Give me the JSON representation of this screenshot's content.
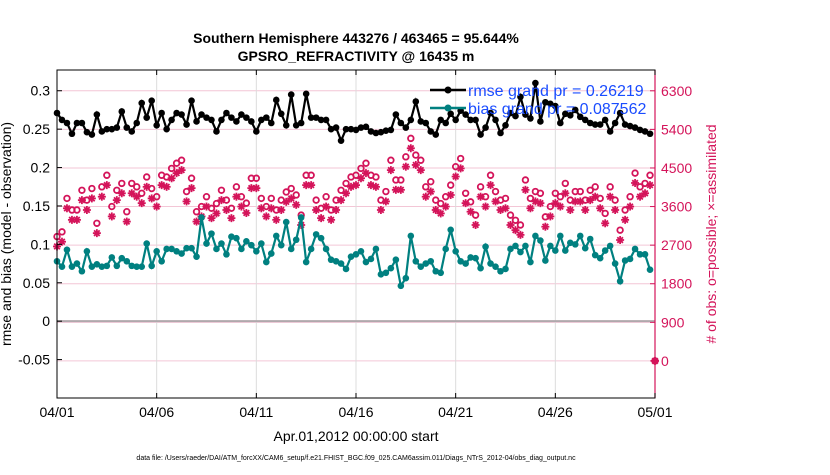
{
  "chart_data": {
    "type": "line",
    "title": [
      "Southern Hemisphere 443276 / 463465 = 95.644%",
      "GPSRO_REFRACTIVITY @ 16435 m"
    ],
    "xlabel": "Apr.01,2012 00:00:00 start",
    "ylabel": "rmse and bias (model - observation)",
    "y2label": "# of obs: o=possible; ×=assimilated",
    "footer": "data file: /Users/raeder/DAI/ATM_forcXX/CAM6_setup/f.e21.FHIST_BGC.f09_025.CAM6assim.011/Diags_NTrS_2012-04/obs_diag_output.nc",
    "x_unit": "days since Apr.01,2012 00:00",
    "x_step_days": 0.25,
    "xlim": [
      0,
      30
    ],
    "ylim": [
      -0.1,
      0.327
    ],
    "y2lim": [
      -865,
      6785
    ],
    "x_ticks": [
      {
        "day": 0,
        "label": "04/01"
      },
      {
        "day": 5,
        "label": "04/06"
      },
      {
        "day": 10,
        "label": "04/11"
      },
      {
        "day": 15,
        "label": "04/16"
      },
      {
        "day": 20,
        "label": "04/21"
      },
      {
        "day": 25,
        "label": "04/26"
      },
      {
        "day": 30,
        "label": "05/01"
      }
    ],
    "y_ticks": [
      {
        "v": -0.05,
        "label": "-0.05"
      },
      {
        "v": 0,
        "label": "0"
      },
      {
        "v": 0.05,
        "label": "0.05"
      },
      {
        "v": 0.1,
        "label": "0.1"
      },
      {
        "v": 0.15,
        "label": "0.15"
      },
      {
        "v": 0.2,
        "label": "0.2"
      },
      {
        "v": 0.25,
        "label": "0.25"
      },
      {
        "v": 0.3,
        "label": "0.3"
      }
    ],
    "y2_ticks": [
      {
        "v": 0,
        "label": "0"
      },
      {
        "v": 900,
        "label": "900"
      },
      {
        "v": 1800,
        "label": "1800"
      },
      {
        "v": 2700,
        "label": "2700"
      },
      {
        "v": 3600,
        "label": "3600"
      },
      {
        "v": 4500,
        "label": "4500"
      },
      {
        "v": 5400,
        "label": "5400"
      },
      {
        "v": 6300,
        "label": "6300"
      }
    ],
    "legend": {
      "placement": "top-right",
      "entries": [
        "rmse grand pr = 0.26219",
        "bias grand pr = 0.087562"
      ]
    },
    "colors": {
      "rmse": "#000000",
      "bias": "#008080",
      "obs": "#d4145a",
      "legend_text": "#1a4cff",
      "grid": "#f3c6d6",
      "zero": "#b0a8ac"
    },
    "series": [
      {
        "name": "rmse",
        "axis": "left",
        "values": [
          0.271,
          0.262,
          0.258,
          0.244,
          0.258,
          0.258,
          0.246,
          0.243,
          0.269,
          0.247,
          0.25,
          0.25,
          0.252,
          0.273,
          0.252,
          0.247,
          0.258,
          0.284,
          0.265,
          0.287,
          0.255,
          0.271,
          0.25,
          0.262,
          0.271,
          0.269,
          0.256,
          0.287,
          0.26,
          0.269,
          0.265,
          0.262,
          0.247,
          0.262,
          0.271,
          0.265,
          0.26,
          0.269,
          0.265,
          0.26,
          0.247,
          0.262,
          0.265,
          0.258,
          0.288,
          0.27,
          0.255,
          0.295,
          0.255,
          0.258,
          0.296,
          0.265,
          0.265,
          0.262,
          0.262,
          0.25,
          0.252,
          0.235,
          0.25,
          0.25,
          0.249,
          0.252,
          0.253,
          0.247,
          0.245,
          0.246,
          0.248,
          0.249,
          0.269,
          0.258,
          0.252,
          0.262,
          0.286,
          0.26,
          0.258,
          0.247,
          0.243,
          0.262,
          0.258,
          0.27,
          0.262,
          0.274,
          0.269,
          0.262,
          0.262,
          0.243,
          0.252,
          0.271,
          0.262,
          0.245,
          0.255,
          0.271,
          0.267,
          0.292,
          0.269,
          0.264,
          0.31,
          0.26,
          0.285,
          0.283,
          0.28,
          0.258,
          0.27,
          0.268,
          0.275,
          0.266,
          0.262,
          0.258,
          0.256,
          0.256,
          0.262,
          0.247,
          0.258,
          0.271,
          0.256,
          0.254,
          0.252,
          0.249,
          0.247,
          0.244,
          null
        ]
      },
      {
        "name": "bias",
        "axis": "left",
        "values": [
          0.078,
          0.071,
          0.093,
          0.071,
          0.075,
          0.065,
          0.091,
          0.071,
          0.074,
          0.071,
          0.072,
          0.083,
          0.072,
          0.082,
          0.078,
          0.072,
          0.071,
          0.071,
          0.101,
          0.072,
          0.091,
          0.078,
          0.094,
          0.094,
          0.091,
          0.088,
          0.095,
          0.095,
          0.084,
          0.135,
          0.101,
          0.114,
          0.094,
          0.101,
          0.087,
          0.11,
          0.108,
          0.094,
          0.104,
          0.099,
          0.091,
          0.101,
          0.077,
          0.088,
          0.111,
          0.099,
          0.129,
          0.094,
          0.106,
          0.135,
          0.077,
          0.094,
          0.113,
          0.108,
          0.094,
          0.08,
          0.078,
          0.075,
          0.068,
          0.084,
          0.087,
          0.091,
          0.077,
          0.081,
          0.094,
          0.061,
          0.063,
          0.069,
          0.08,
          0.046,
          0.056,
          0.111,
          0.078,
          0.071,
          0.075,
          0.078,
          0.065,
          0.063,
          0.094,
          0.119,
          0.091,
          0.078,
          0.075,
          0.083,
          0.082,
          0.069,
          0.097,
          0.075,
          0.071,
          0.065,
          0.068,
          0.094,
          0.098,
          0.09,
          0.098,
          0.077,
          0.111,
          0.105,
          0.079,
          0.098,
          0.092,
          0.111,
          0.092,
          0.102,
          0.1,
          0.111,
          0.095,
          0.107,
          0.086,
          0.082,
          0.092,
          0.098,
          0.075,
          0.052,
          0.079,
          0.081,
          0.094,
          0.087,
          0.087,
          0.067,
          null
        ]
      },
      {
        "name": "possible",
        "axis": "right",
        "values": [
          2900,
          3010,
          3790,
          3520,
          3520,
          3980,
          3750,
          4020,
          3210,
          4060,
          4330,
          3600,
          3980,
          4140,
          3480,
          4140,
          4060,
          3910,
          4290,
          4020,
          3830,
          4330,
          4290,
          4490,
          4610,
          4680,
          3950,
          4260,
          3480,
          3600,
          3830,
          3560,
          3670,
          3980,
          3750,
          3560,
          4060,
          3830,
          3680,
          4260,
          4260,
          3790,
          3600,
          3790,
          3520,
          3750,
          3940,
          4020,
          3870,
          3400,
          4330,
          4330,
          3750,
          3560,
          3830,
          3520,
          3750,
          3980,
          4140,
          4290,
          4330,
          4490,
          4610,
          4330,
          4290,
          3750,
          3950,
          4680,
          4220,
          4220,
          4760,
          5190,
          4800,
          4680,
          4060,
          4180,
          3750,
          3670,
          3830,
          4100,
          4530,
          4720,
          3910,
          3710,
          3400,
          4060,
          3830,
          4330,
          3950,
          3750,
          3790,
          3400,
          3280,
          3170,
          4220,
          3790,
          3950,
          3910,
          3360,
          3600,
          3910,
          3830,
          4140,
          3750,
          3950,
          3950,
          3750,
          3980,
          4060,
          3790,
          3440,
          4060,
          3750,
          3050,
          3520,
          3830,
          4380,
          4060,
          4140,
          4330,
          0
        ]
      },
      {
        "name": "assimilated",
        "axis": "right",
        "values": [
          2670,
          2780,
          3560,
          3290,
          3290,
          3750,
          3520,
          3790,
          2980,
          3830,
          4100,
          3370,
          3750,
          3910,
          3250,
          3910,
          3830,
          3680,
          4060,
          3790,
          3600,
          4100,
          4060,
          4260,
          4380,
          4450,
          3720,
          4030,
          3250,
          3370,
          3600,
          3330,
          3440,
          3750,
          3520,
          3330,
          3830,
          3600,
          3450,
          4030,
          4030,
          3560,
          3370,
          3560,
          3290,
          3520,
          3710,
          3790,
          3640,
          3170,
          4100,
          4100,
          3520,
          3330,
          3600,
          3290,
          3520,
          3750,
          3910,
          4060,
          4100,
          4260,
          4380,
          4100,
          4060,
          3520,
          3720,
          4450,
          3990,
          3990,
          4530,
          4960,
          4570,
          4450,
          3830,
          3950,
          3520,
          3440,
          3600,
          3870,
          4300,
          4490,
          3680,
          3480,
          3170,
          3830,
          3600,
          4100,
          3720,
          3520,
          3560,
          3170,
          3050,
          2940,
          3990,
          3560,
          3720,
          3680,
          3130,
          3370,
          3680,
          3600,
          3910,
          3520,
          3720,
          3720,
          3520,
          3750,
          3830,
          3560,
          3210,
          3830,
          3520,
          2820,
          3290,
          3600,
          4150,
          3830,
          3910,
          4100,
          0
        ]
      }
    ]
  }
}
